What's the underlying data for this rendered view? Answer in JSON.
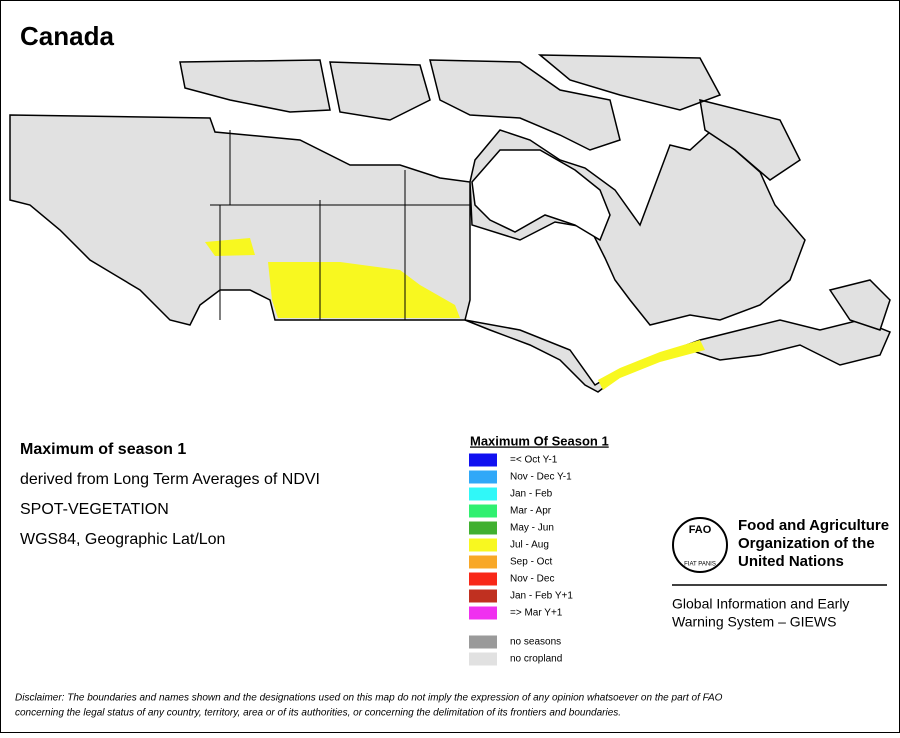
{
  "title": "Canada",
  "info": {
    "heading": "Maximum of season 1",
    "lines": [
      "derived from Long Term Averages of NDVI",
      "SPOT-VEGETATION",
      "WGS84, Geographic Lat/Lon"
    ]
  },
  "legend": {
    "title": "Maximum Of Season 1",
    "items": [
      {
        "label": "=< Oct Y-1",
        "color": "#1010f0"
      },
      {
        "label": "Nov - Dec Y-1",
        "color": "#30a8f8"
      },
      {
        "label": "Jan - Feb",
        "color": "#30f8f8"
      },
      {
        "label": "Mar - Apr",
        "color": "#30f070"
      },
      {
        "label": "May - Jun",
        "color": "#40b030"
      },
      {
        "label": "Jul - Aug",
        "color": "#f8f820"
      },
      {
        "label": "Sep - Oct",
        "color": "#f8a828"
      },
      {
        "label": "Nov - Dec",
        "color": "#f82818"
      },
      {
        "label": "Jan - Feb Y+1",
        "color": "#c03020"
      },
      {
        "label": "=> Mar Y+1",
        "color": "#f030f0"
      }
    ],
    "extra": [
      {
        "label": "no seasons",
        "color": "#9a9a9a"
      },
      {
        "label": "no cropland",
        "color": "#e1e1e1"
      }
    ]
  },
  "logo": {
    "emblem": "FAO",
    "motto": "FIAT PANIS",
    "org": [
      "Food and Agriculture",
      "Organization of the",
      "United Nations"
    ],
    "system": [
      "Global Information and Early",
      "Warning System – GIEWS"
    ]
  },
  "disclaimer": [
    "Disclaimer: The boundaries and names shown and the designations used on this map do not imply the expression of any opinion whatsoever on the part of FAO",
    "concerning the legal status of any country, territory, area or of its authorities, or concerning the delimitation of its frontiers and boundaries."
  ]
}
